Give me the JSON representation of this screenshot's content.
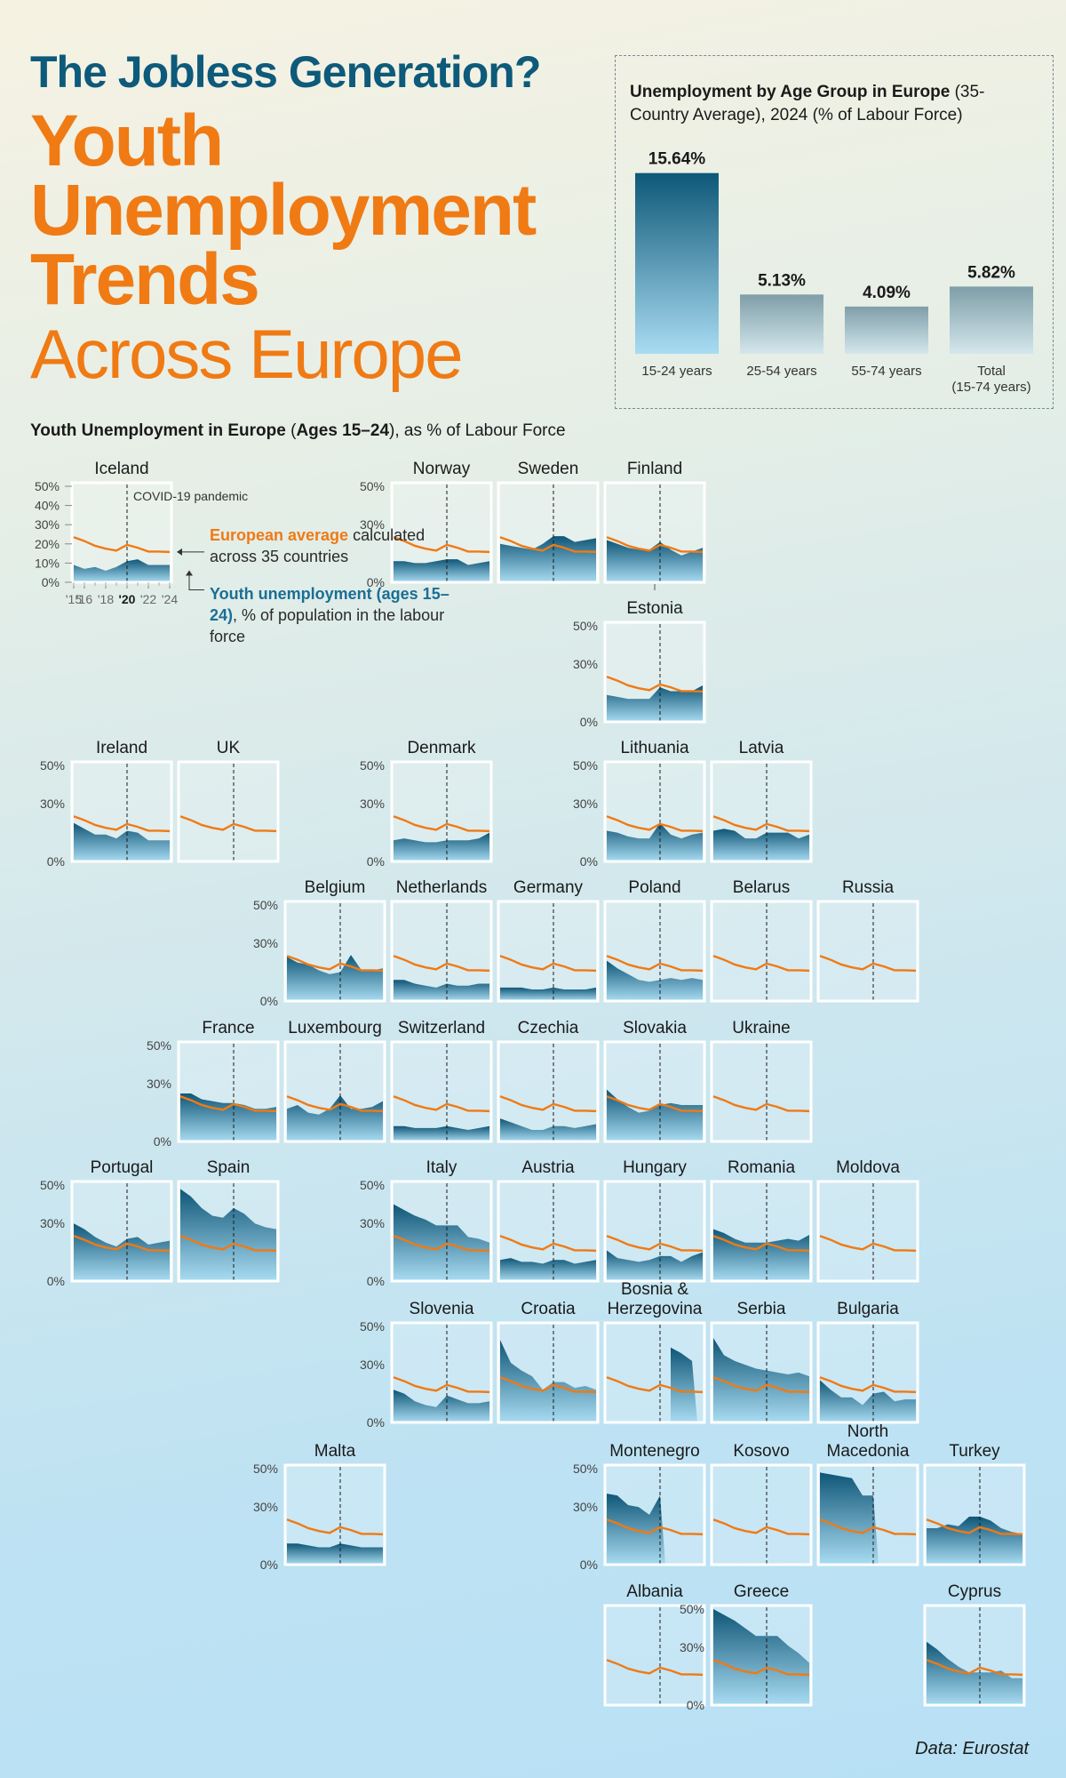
{
  "header": {
    "kicker": "The Jobless Generation?",
    "headline": "Youth Unemployment Trends",
    "headline_light": "Across Europe"
  },
  "inset": {
    "title_bold": "Unemployment by Age Group in Europe",
    "title_rest": " (35-Country Average), 2024 (% of Labour Force)"
  },
  "section": {
    "title_bold_1": "Youth Unemployment in Europe",
    "title_paren_open": " (",
    "title_bold_2": "Ages 15–24",
    "title_rest": "), as % of Labour Force"
  },
  "legend": {
    "covid": "COVID-19 pandemic",
    "orange_bold": "European average",
    "orange_rest": " calculated across 35 countries",
    "blue_bold": "Youth unemployment (ages 15–24)",
    "blue_rest": ", % of population in the labour force"
  },
  "source": "Data: Eurostat",
  "colors": {
    "title_blue": "#0d5a7a",
    "orange": "#f07a14",
    "area_dark": "#0f5677",
    "area_light": "#a9dcf2"
  },
  "chart_data": [
    {
      "type": "bar",
      "title": "Unemployment by Age Group in Europe (35-Country Average), 2024 (% of Labour Force)",
      "categories": [
        "15-24 years",
        "25-54 years",
        "55-74 years",
        "Total (15-74 years)"
      ],
      "category_lines": [
        [
          "15-24 years"
        ],
        [
          "25-54 years"
        ],
        [
          "55-74 years"
        ],
        [
          "Total",
          "(15-74 years)"
        ]
      ],
      "values": [
        15.64,
        5.13,
        4.09,
        5.82
      ],
      "value_labels": [
        "15.64%",
        "5.13%",
        "4.09%",
        "5.82%"
      ],
      "ylim": [
        0,
        16
      ]
    },
    {
      "type": "area",
      "title": "Youth Unemployment in Europe (Ages 15–24), as % of Labour Force",
      "x": [
        2015,
        2016,
        2017,
        2018,
        2019,
        2020,
        2021,
        2022,
        2023,
        2024
      ],
      "x_tick_labels": [
        "'15",
        "'16",
        "'18",
        "'20",
        "'22",
        "'24"
      ],
      "ylim": [
        0,
        50
      ],
      "y_tick_labels_detail": [
        "50%",
        "40%",
        "30%",
        "20%",
        "10%",
        "0%"
      ],
      "y_tick_labels": [
        "50%",
        "30%",
        "0%"
      ],
      "covid_year": 2020,
      "european_average": [
        23.5,
        21.5,
        19.0,
        17.5,
        16.5,
        19.5,
        18.0,
        16.0,
        16.0,
        15.8
      ],
      "countries": [
        {
          "name": "Iceland",
          "values": [
            9,
            7,
            8,
            6,
            8,
            11,
            12,
            9,
            9,
            9
          ]
        },
        {
          "name": "Norway",
          "values": [
            11,
            11,
            10,
            10,
            11,
            12,
            12,
            9,
            10,
            11
          ]
        },
        {
          "name": "Sweden",
          "values": [
            20,
            19,
            18,
            17,
            20,
            24,
            24,
            21,
            22,
            23
          ]
        },
        {
          "name": "Finland",
          "values": [
            22,
            20,
            18,
            17,
            17,
            21,
            17,
            14,
            16,
            18
          ]
        },
        {
          "name": "Estonia",
          "values": [
            14,
            13,
            12,
            12,
            12,
            18,
            16,
            16,
            16,
            19
          ]
        },
        {
          "name": "Ireland",
          "values": [
            20,
            17,
            14,
            14,
            12,
            16,
            15,
            11,
            11,
            11
          ]
        },
        {
          "name": "UK",
          "values": []
        },
        {
          "name": "Denmark",
          "values": [
            11,
            12,
            11,
            10,
            10,
            11,
            11,
            11,
            12,
            15
          ]
        },
        {
          "name": "Lithuania",
          "values": [
            16,
            15,
            13,
            12,
            12,
            20,
            14,
            12,
            14,
            15
          ]
        },
        {
          "name": "Latvia",
          "values": [
            16,
            17,
            16,
            12,
            12,
            15,
            15,
            15,
            12,
            14
          ]
        },
        {
          "name": "Belgium",
          "values": [
            23,
            20,
            19,
            16,
            14,
            15,
            24,
            16,
            16,
            17
          ]
        },
        {
          "name": "Netherlands",
          "values": [
            11,
            11,
            9,
            8,
            7,
            9,
            8,
            8,
            9,
            9
          ]
        },
        {
          "name": "Germany",
          "values": [
            7,
            7,
            7,
            6,
            6,
            7,
            6,
            6,
            6,
            7
          ]
        },
        {
          "name": "Poland",
          "values": [
            21,
            17,
            14,
            11,
            10,
            11,
            12,
            11,
            12,
            11
          ]
        },
        {
          "name": "Belarus",
          "values": []
        },
        {
          "name": "Russia",
          "values": []
        },
        {
          "name": "France",
          "values": [
            25,
            25,
            22,
            21,
            20,
            20,
            19,
            17,
            17,
            18
          ]
        },
        {
          "name": "Luxembourg",
          "values": [
            17,
            19,
            15,
            14,
            17,
            24,
            17,
            17,
            18,
            21
          ]
        },
        {
          "name": "Switzerland",
          "values": [
            8,
            8,
            7,
            7,
            7,
            8,
            7,
            6,
            7,
            8
          ]
        },
        {
          "name": "Czechia",
          "values": [
            12,
            10,
            8,
            6,
            6,
            8,
            8,
            7,
            8,
            9
          ]
        },
        {
          "name": "Slovakia",
          "values": [
            27,
            22,
            18,
            15,
            16,
            19,
            20,
            19,
            19,
            19
          ]
        },
        {
          "name": "Ukraine",
          "values": []
        },
        {
          "name": "Portugal",
          "values": [
            30,
            27,
            23,
            20,
            18,
            22,
            23,
            19,
            20,
            21
          ]
        },
        {
          "name": "Spain",
          "values": [
            48,
            44,
            38,
            34,
            33,
            38,
            35,
            30,
            28,
            27
          ]
        },
        {
          "name": "Italy",
          "values": [
            40,
            37,
            34,
            32,
            29,
            29,
            29,
            23,
            22,
            20
          ]
        },
        {
          "name": "Austria",
          "values": [
            11,
            12,
            10,
            10,
            9,
            11,
            11,
            9,
            10,
            11
          ]
        },
        {
          "name": "Hungary",
          "values": [
            16,
            12,
            11,
            10,
            11,
            13,
            13,
            10,
            13,
            15
          ]
        },
        {
          "name": "Romania",
          "values": [
            27,
            25,
            22,
            20,
            20,
            20,
            21,
            22,
            21,
            24
          ]
        },
        {
          "name": "Moldova",
          "values": []
        },
        {
          "name": "Slovenia",
          "values": [
            17,
            15,
            11,
            9,
            8,
            14,
            12,
            10,
            10,
            11
          ]
        },
        {
          "name": "Croatia",
          "values": [
            43,
            31,
            27,
            24,
            17,
            21,
            21,
            18,
            19,
            17
          ]
        },
        {
          "name": "Bosnia & Herzegovina",
          "values": [
            null,
            null,
            null,
            null,
            null,
            null,
            39,
            36,
            32,
            null
          ]
        },
        {
          "name": "Serbia",
          "values": [
            44,
            35,
            32,
            30,
            28,
            27,
            26,
            25,
            26,
            24
          ]
        },
        {
          "name": "Bulgaria",
          "values": [
            22,
            17,
            13,
            13,
            9,
            15,
            16,
            11,
            12,
            12
          ]
        },
        {
          "name": "Malta",
          "values": [
            11,
            11,
            10,
            9,
            9,
            11,
            10,
            9,
            9,
            9
          ]
        },
        {
          "name": "Montenegro",
          "values": [
            37,
            36,
            31,
            30,
            26,
            36,
            null,
            null,
            null,
            null
          ]
        },
        {
          "name": "Kosovo",
          "values": []
        },
        {
          "name": "North Macedonia",
          "values": [
            48,
            47,
            46,
            45,
            36,
            36,
            null,
            null,
            null,
            null
          ]
        },
        {
          "name": "Turkey",
          "values": [
            19,
            19,
            21,
            20,
            25,
            25,
            23,
            19,
            17,
            16
          ]
        },
        {
          "name": "Albania",
          "values": []
        },
        {
          "name": "Greece",
          "values": [
            50,
            47,
            44,
            40,
            36,
            36,
            36,
            31,
            27,
            22
          ]
        },
        {
          "name": "Cyprus",
          "values": [
            33,
            29,
            24,
            20,
            17,
            17,
            17,
            18,
            14,
            14
          ]
        }
      ]
    }
  ]
}
